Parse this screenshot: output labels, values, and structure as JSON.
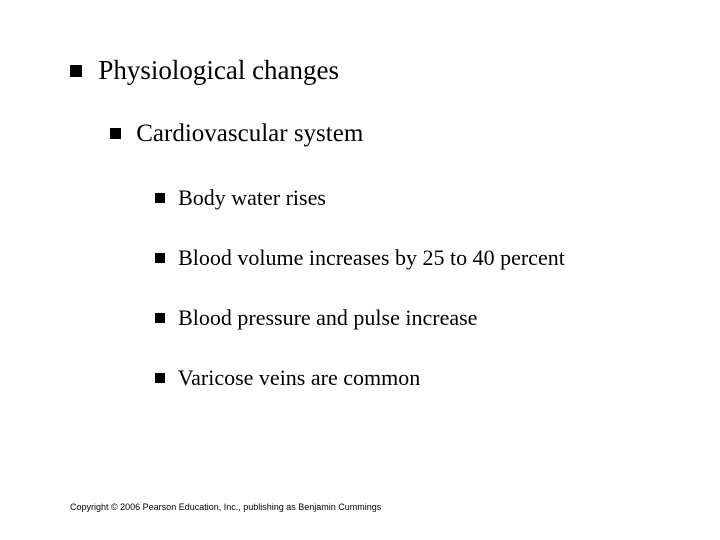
{
  "slide": {
    "background_color": "#ffffff",
    "text_color": "#000000",
    "bullet_color": "#000000",
    "font_family_body": "Times New Roman",
    "font_family_footer": "Arial",
    "lvl1": {
      "text": "Physiological changes",
      "fontsize": 27
    },
    "lvl2": {
      "text": "Cardiovascular system",
      "fontsize": 25
    },
    "lvl3": {
      "fontsize": 22,
      "items": [
        "Body water rises",
        "Blood volume increases by 25 to 40 percent",
        "Blood pressure and pulse increase",
        "Varicose veins are common"
      ]
    },
    "copyright": "Copyright © 2006 Pearson Education, Inc., publishing as Benjamin Cummings"
  }
}
